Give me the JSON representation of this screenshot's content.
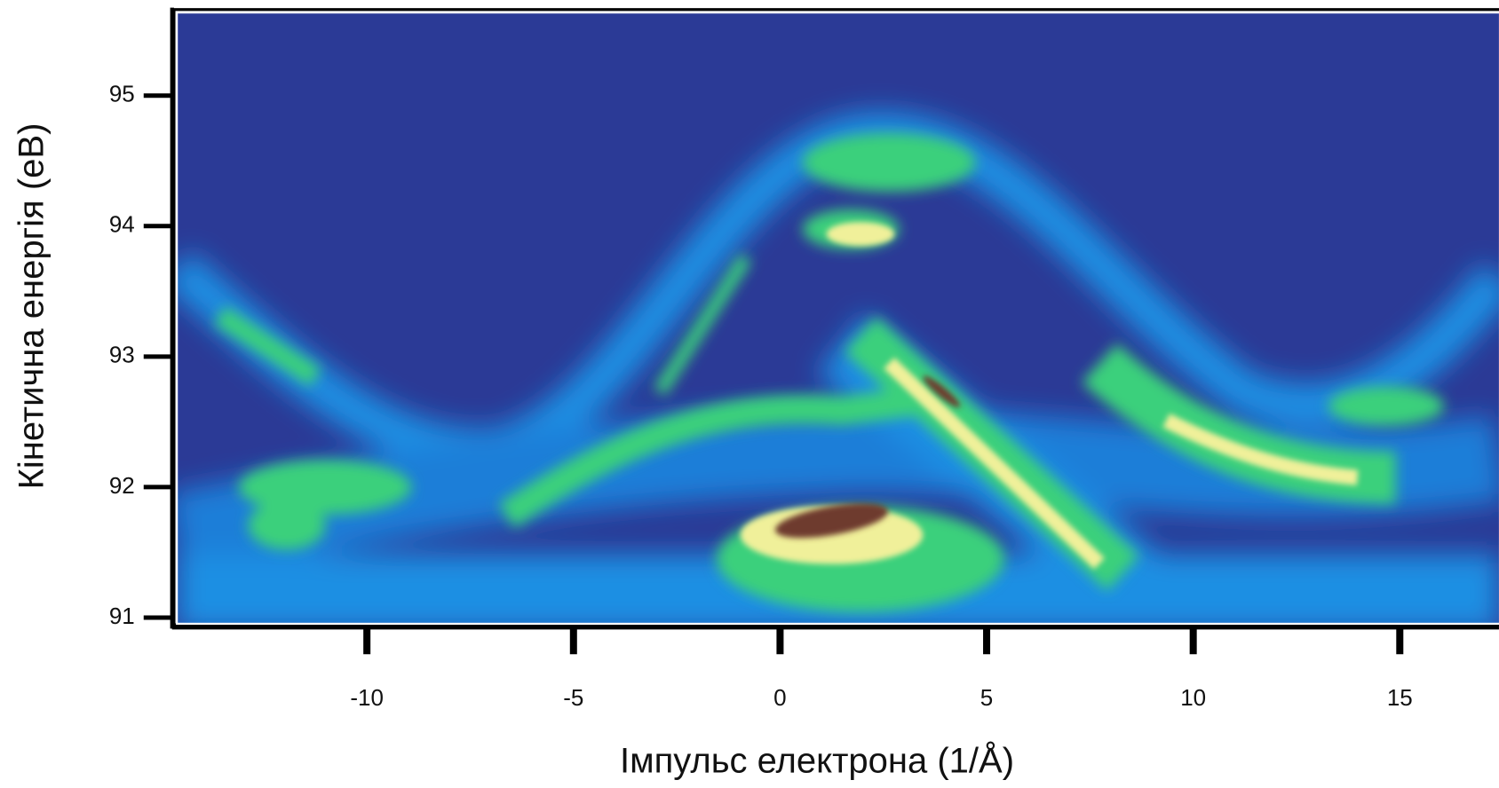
{
  "chart_data": {
    "type": "heatmap",
    "xlabel": "Імпульс електрона (1/Å)",
    "ylabel": "Кінетична енергія (еВ)",
    "xlim": [
      -14.6,
      17.4
    ],
    "xticks": [
      -10,
      -5,
      0,
      5,
      10,
      15
    ],
    "ylim": [
      90.96,
      95.63
    ],
    "yticks": [
      91,
      92,
      93,
      94,
      95
    ]
  }
}
